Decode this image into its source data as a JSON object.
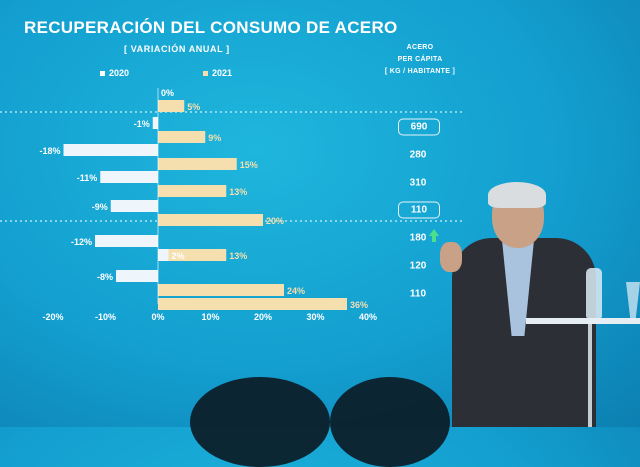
{
  "title": "RECUPERACIÓN DEL CONSUMO DE ACERO",
  "subtitle": "[ VARIACIÓN ANUAL ]",
  "per_capita": {
    "header": [
      "ACERO",
      "PER CÁPITA",
      "[ KG / HABITANTE ]"
    ],
    "values": [
      "690",
      "280",
      "310",
      "110",
      "180",
      "120",
      "110"
    ],
    "boxed_rows": [
      0,
      3
    ],
    "arrow_row": 4,
    "arrow_color": "#4be08a"
  },
  "chart_data": {
    "type": "bar",
    "orientation": "horizontal",
    "categories": [
      "",
      "",
      "",
      "",
      "",
      "",
      ""
    ],
    "series": [
      {
        "name": "2020",
        "color": "#eef6fb",
        "values": [
          0,
          -1,
          -18,
          -11,
          -9,
          -12,
          -8
        ],
        "labels": [
          "0%",
          "-1%",
          "-18%",
          "-11%",
          "-9%",
          "-12%",
          "-8%"
        ]
      },
      {
        "name": "2021",
        "color": "#f6dfae",
        "values": [
          5,
          9,
          15,
          13,
          20,
          13,
          24
        ],
        "labels": [
          "5%",
          "9%",
          "15%",
          "13%",
          "20%",
          "13%",
          "24%"
        ]
      }
    ],
    "extra_bars": [
      {
        "row": 5,
        "series": "2020",
        "value": 2,
        "label": "2%"
      },
      {
        "row": 6,
        "series": "2021",
        "value": 36,
        "label": "36%"
      }
    ],
    "x_ticks": [
      -20,
      -10,
      0,
      10,
      20,
      30,
      40
    ],
    "x_tick_labels": [
      "-20%",
      "-10%",
      "0%",
      "10%",
      "20%",
      "30%",
      "40%"
    ],
    "xlim": [
      -20,
      40
    ],
    "separators_after_rows": [
      0,
      3
    ],
    "colors": {
      "2020": "#eef6fb",
      "2021": "#f6dfae",
      "label": "#f6dfae"
    }
  }
}
